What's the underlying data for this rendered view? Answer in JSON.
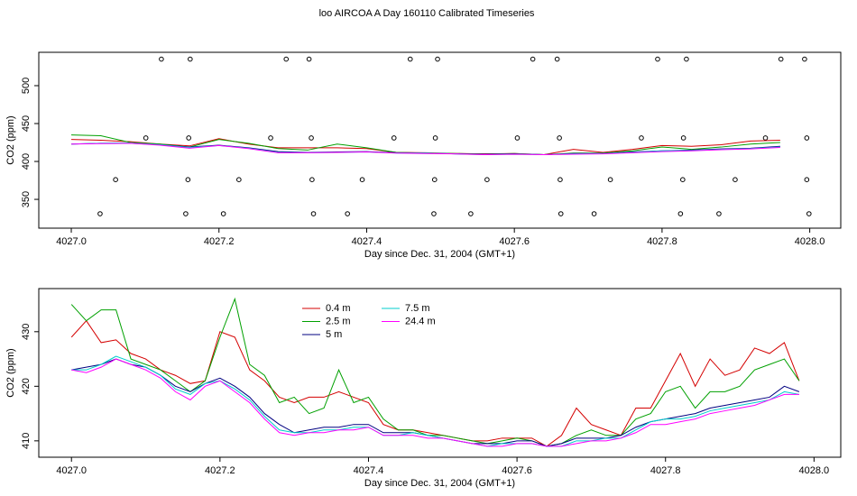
{
  "title": "loo AIRCOA A  Day 160110  Calibrated Timeseries",
  "chart_data": [
    {
      "type": "line",
      "xlabel": "Day since Dec. 31, 2004 (GMT+1)",
      "ylabel": "CO2 (ppm)",
      "xlim": [
        4026.956,
        4028.042
      ],
      "ylim": [
        312,
        544
      ],
      "xticks": [
        {
          "value": 4027,
          "label": "4027.0"
        },
        {
          "value": 4027.2,
          "label": "4027.2"
        },
        {
          "value": 4027.4,
          "label": "4027.4"
        },
        {
          "value": 4027.6,
          "label": "4027.6"
        },
        {
          "value": 4027.8,
          "label": "4027.8"
        },
        {
          "value": 4028,
          "label": "4028.0"
        }
      ],
      "yticks": [
        350,
        400,
        450,
        500
      ],
      "x": [
        4027.0,
        4027.04,
        4027.08,
        4027.12,
        4027.16,
        4027.2,
        4027.24,
        4027.28,
        4027.32,
        4027.36,
        4027.4,
        4027.44,
        4027.48,
        4027.52,
        4027.56,
        4027.6,
        4027.64,
        4027.68,
        4027.72,
        4027.76,
        4027.8,
        4027.84,
        4027.88,
        4027.92,
        4027.96
      ],
      "series": [
        {
          "color": "#d40000",
          "values": [
            429,
            428,
            426,
            423,
            420.5,
            430,
            423,
            418,
            418,
            418,
            417,
            412,
            411.5,
            410.5,
            410,
            410.5,
            409,
            416,
            412,
            416,
            421,
            420,
            422,
            427,
            428
          ]
        },
        {
          "color": "#00a000",
          "values": [
            435,
            434,
            425,
            423,
            419,
            429,
            424,
            417,
            415,
            423,
            418,
            412,
            411,
            410.5,
            409.5,
            410.5,
            409,
            411,
            411,
            414,
            419,
            416,
            419,
            423,
            425
          ]
        },
        {
          "color": "#000080",
          "values": [
            423,
            424,
            424,
            422,
            419,
            421.5,
            418,
            413,
            412,
            412.5,
            413,
            411.5,
            411,
            410,
            409.5,
            410,
            409,
            410.5,
            410.5,
            412.5,
            414,
            415,
            416.5,
            417.5,
            420
          ]
        },
        {
          "color": "#00cccc",
          "values": [
            423,
            424,
            424.5,
            422,
            418.5,
            421,
            417.5,
            412,
            411.5,
            412,
            412.5,
            411,
            411,
            410,
            409,
            409.5,
            409,
            410,
            410.5,
            412,
            414,
            414.5,
            416,
            417,
            419
          ]
        },
        {
          "color": "#ff00ff",
          "values": [
            423,
            423.5,
            424,
            421.5,
            417.5,
            421,
            417,
            411.5,
            411.5,
            412,
            412.5,
            411,
            410.5,
            410,
            409,
            409.5,
            409,
            409.5,
            410,
            411.5,
            413,
            414,
            415.5,
            416.5,
            418.5
          ]
        }
      ],
      "points": {
        "x": [
          4027.122,
          4027.161,
          4027.291,
          4027.322,
          4027.459,
          4027.496,
          4027.625,
          4027.658,
          4027.794,
          4027.833,
          4027.961,
          4027.993,
          4027.101,
          4027.159,
          4027.27,
          4027.325,
          4027.437,
          4027.493,
          4027.604,
          4027.661,
          4027.772,
          4027.829,
          4027.94,
          4027.996,
          4027.06,
          4027.158,
          4027.227,
          4027.326,
          4027.394,
          4027.492,
          4027.563,
          4027.662,
          4027.73,
          4027.828,
          4027.899,
          4027.996,
          4027.039,
          4027.155,
          4027.206,
          4027.328,
          4027.374,
          4027.491,
          4027.541,
          4027.663,
          4027.708,
          4027.825,
          4027.877,
          4027.999
        ],
        "y": [
          535,
          535,
          535,
          535,
          535,
          535,
          535,
          535,
          535,
          535,
          535,
          535,
          431,
          431,
          431,
          431,
          431,
          431,
          431,
          431,
          431,
          431,
          431,
          431,
          376,
          376,
          376,
          376,
          376,
          376,
          376,
          376,
          376,
          376,
          376,
          376,
          331,
          331,
          331,
          331,
          331,
          331,
          331,
          331,
          331,
          331,
          331,
          331
        ]
      }
    },
    {
      "type": "line",
      "xlabel": "Day since Dec. 31, 2004 (GMT+1)",
      "ylabel": "CO2 (ppm)",
      "xlim": [
        4026.956,
        4028.036
      ],
      "ylim": [
        407,
        437.9
      ],
      "xticks": [
        {
          "value": 4027,
          "label": "4027.0"
        },
        {
          "value": 4027.2,
          "label": "4027.2"
        },
        {
          "value": 4027.4,
          "label": "4027.4"
        },
        {
          "value": 4027.6,
          "label": "4027.6"
        },
        {
          "value": 4027.8,
          "label": "4027.8"
        },
        {
          "value": 4028,
          "label": "4028.0"
        }
      ],
      "yticks": [
        410,
        420,
        430
      ],
      "legend": "top",
      "x": [
        4027.0,
        4027.02,
        4027.04,
        4027.06,
        4027.08,
        4027.1,
        4027.12,
        4027.14,
        4027.16,
        4027.18,
        4027.2,
        4027.22,
        4027.24,
        4027.26,
        4027.28,
        4027.3,
        4027.32,
        4027.34,
        4027.36,
        4027.38,
        4027.4,
        4027.42,
        4027.44,
        4027.46,
        4027.48,
        4027.5,
        4027.52,
        4027.54,
        4027.56,
        4027.58,
        4027.6,
        4027.62,
        4027.64,
        4027.66,
        4027.68,
        4027.7,
        4027.72,
        4027.74,
        4027.76,
        4027.78,
        4027.8,
        4027.82,
        4027.84,
        4027.86,
        4027.88,
        4027.9,
        4027.92,
        4027.94,
        4027.96,
        4027.98
      ],
      "series": [
        {
          "name": "0.4 m",
          "color": "#d40000",
          "values": [
            429,
            432,
            428,
            428.5,
            426,
            425,
            423,
            422,
            420.5,
            421,
            430,
            429,
            423,
            421,
            418,
            417,
            418,
            418,
            419,
            418,
            417,
            413,
            412,
            412,
            411.5,
            411,
            410.5,
            410,
            410,
            410.5,
            410.5,
            410.5,
            409,
            411,
            416,
            413,
            412,
            411,
            416,
            416,
            421,
            426,
            420,
            425,
            422,
            423,
            427,
            426,
            428,
            421
          ]
        },
        {
          "name": "2.5 m",
          "color": "#00a000",
          "values": [
            435,
            432,
            434,
            434,
            425,
            424,
            423,
            421,
            419,
            421,
            429,
            436,
            424,
            422,
            417,
            418,
            415,
            416,
            423,
            417,
            418,
            414,
            412,
            412,
            411,
            411,
            410.5,
            410,
            409.5,
            410,
            410.5,
            410,
            409,
            409.5,
            411,
            412,
            411,
            411,
            414,
            415,
            419,
            420,
            416,
            419,
            419,
            420,
            423,
            424,
            425,
            421
          ]
        },
        {
          "name": "5 m",
          "color": "#000080",
          "values": [
            423,
            423.5,
            424,
            425,
            424,
            423.5,
            422,
            420,
            419,
            420.5,
            421.5,
            420,
            418,
            415,
            413,
            411.5,
            412,
            412.5,
            412.5,
            413,
            413,
            411.5,
            411.5,
            411.5,
            411,
            410.5,
            410,
            409.5,
            409.5,
            409.5,
            410,
            410,
            409,
            409.5,
            410.5,
            410.5,
            410.5,
            411,
            412.5,
            413.5,
            414,
            414.5,
            415,
            416,
            416.5,
            417,
            417.5,
            418,
            420,
            419
          ]
        },
        {
          "name": "7.5 m",
          "color": "#00cccc",
          "values": [
            423,
            423,
            424,
            425.5,
            424.5,
            423.5,
            422,
            419.5,
            418.5,
            420.5,
            421,
            419.5,
            417.5,
            414.5,
            412,
            411.5,
            411.5,
            412,
            412,
            412.5,
            412.5,
            411,
            411,
            411.5,
            411,
            410.5,
            410,
            409.5,
            409,
            409.5,
            409.5,
            409.5,
            409,
            409,
            410,
            410,
            410.5,
            410.5,
            412,
            413.5,
            414,
            414,
            414.5,
            415.5,
            416,
            416.5,
            417,
            417.5,
            419,
            418.5
          ]
        },
        {
          "name": "24.4 m",
          "color": "#ff00ff",
          "values": [
            423,
            422.5,
            423.5,
            425,
            424,
            423,
            421.5,
            419,
            417.5,
            420,
            421,
            419,
            417,
            414,
            411.5,
            411,
            411.5,
            411.5,
            412,
            412,
            412.5,
            411,
            411,
            411,
            410.5,
            410.5,
            410,
            409.5,
            409,
            409,
            409.5,
            409.5,
            409,
            409,
            409.5,
            410,
            410,
            410.5,
            411.5,
            413,
            413,
            413.5,
            414,
            415,
            415.5,
            416,
            416.5,
            417.5,
            418.5,
            418.5
          ]
        }
      ]
    }
  ]
}
